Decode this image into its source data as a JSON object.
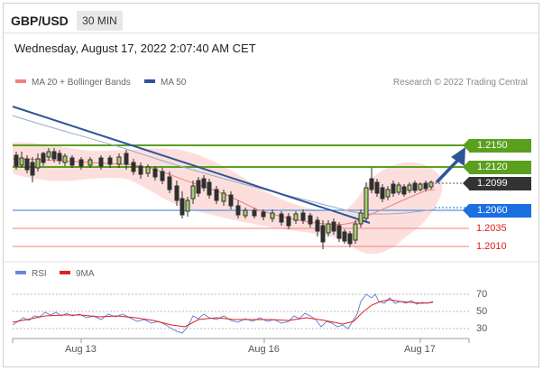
{
  "header": {
    "symbol": "GBP/USD",
    "interval": "30 MIN"
  },
  "datetime": "Wednesday, August 17, 2022 2:07:40 AM CET",
  "legend": {
    "ma20": {
      "label": "MA 20 + Bollinger Bands",
      "color": "#f08080"
    },
    "ma50": {
      "label": "MA 50",
      "color": "#2d5596"
    }
  },
  "copyright": "Research © 2022 Trading Central",
  "levels": {
    "l2150": "1.2150",
    "l2120": "1.2120",
    "current": "1.2099",
    "l2060": "1.2060",
    "l2035": "1.2035",
    "l2010": "1.2010"
  },
  "rsi_legend": {
    "rsi": {
      "label": "RSI",
      "color": "#6a86d8"
    },
    "ma9": {
      "label": "9MA",
      "color": "#e02020"
    }
  },
  "rsi_ticks": [
    "70",
    "50",
    "30"
  ],
  "xaxis": [
    "Aug 13",
    "Aug 16",
    "Aug 17"
  ],
  "colors": {
    "support_green": "#5aa01e",
    "resistance_blue": "#1c6fe0",
    "bearish_candle": "#2f2f2f",
    "bullish_candle": "#a8cf6a"
  }
}
